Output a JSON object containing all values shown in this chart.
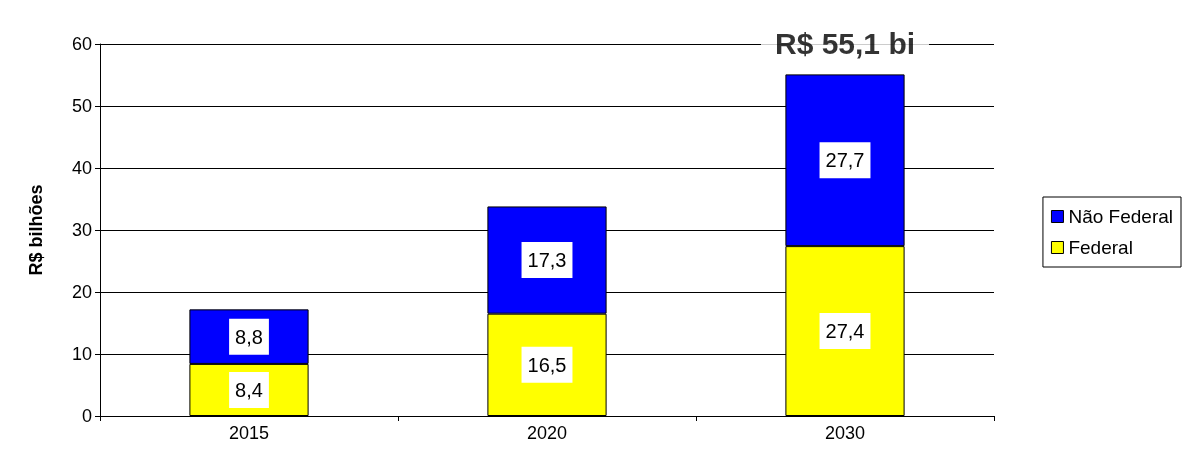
{
  "chart_data": {
    "type": "bar",
    "stacked": true,
    "ylabel": "R$ bilhões",
    "categories": [
      "2015",
      "2020",
      "2030"
    ],
    "series": [
      {
        "name": "Federal",
        "color": "#ffff00",
        "values": [
          8.4,
          16.5,
          27.4
        ],
        "value_labels": [
          "8,4",
          "16,5",
          "27,4"
        ]
      },
      {
        "name": "Não Federal",
        "color": "#0000ff",
        "values": [
          8.8,
          17.3,
          27.7
        ],
        "value_labels": [
          "8,8",
          "17,3",
          "27,7"
        ]
      }
    ],
    "ylim": [
      0,
      60
    ],
    "yticks": [
      0,
      10,
      20,
      30,
      40,
      50,
      60
    ],
    "grid": "y",
    "legend": "right",
    "annotations": [
      {
        "text": "R$ 55,1 bi",
        "x": "2030",
        "y": 55.1
      }
    ]
  }
}
